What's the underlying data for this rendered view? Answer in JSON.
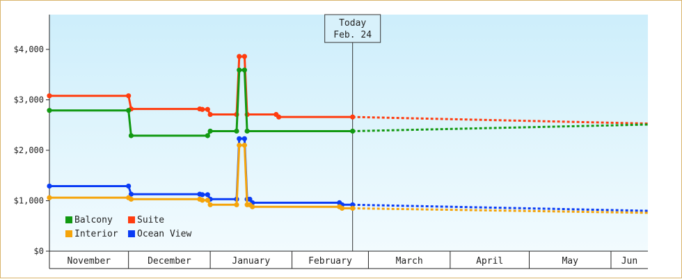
{
  "chart_data": {
    "type": "line",
    "title": "",
    "xlabel": "",
    "ylabel": "",
    "ylim": [
      0,
      4000
    ],
    "x_range": [
      "2019-11-01",
      "2020-06-15"
    ],
    "grid": false,
    "legend_position": "bottom-left",
    "y_ticks": [
      "$0",
      "$1,000",
      "$2,000",
      "$3,000",
      "$4,000"
    ],
    "months": [
      {
        "label": "November",
        "start": "2019-11-01",
        "end": "2019-12-01"
      },
      {
        "label": "December",
        "start": "2019-12-01",
        "end": "2020-01-01"
      },
      {
        "label": "January",
        "start": "2020-01-01",
        "end": "2020-02-01"
      },
      {
        "label": "February",
        "start": "2020-02-01",
        "end": "2020-03-01"
      },
      {
        "label": "March",
        "start": "2020-03-01",
        "end": "2020-04-01"
      },
      {
        "label": "April",
        "start": "2020-04-01",
        "end": "2020-05-01"
      },
      {
        "label": "May",
        "start": "2020-05-01",
        "end": "2020-06-01"
      },
      {
        "label": "Jun",
        "start": "2020-06-01",
        "end": "2020-06-15"
      }
    ],
    "today": {
      "line1": "Today",
      "line2": "Feb. 24",
      "date": "2020-02-24"
    },
    "series": [
      {
        "name": "Suite",
        "color": "#ff3c0f",
        "points": [
          [
            "2019-11-01",
            3080
          ],
          [
            "2019-12-01",
            3080
          ],
          [
            "2019-12-02",
            2820
          ],
          [
            "2019-12-28",
            2820
          ],
          [
            "2019-12-29",
            2810
          ],
          [
            "2019-12-31",
            2810
          ],
          [
            "2020-01-01",
            2710
          ],
          [
            "2020-01-11",
            2710
          ],
          [
            "2020-01-12",
            3860
          ],
          [
            "2020-01-14",
            3860
          ],
          [
            "2020-01-15",
            2710
          ],
          [
            "2020-01-26",
            2710
          ],
          [
            "2020-01-27",
            2660
          ],
          [
            "2020-02-24",
            2660
          ]
        ],
        "forecast": [
          [
            "2020-02-24",
            2660
          ],
          [
            "2020-06-15",
            2530
          ]
        ]
      },
      {
        "name": "Balcony",
        "color": "#119911",
        "points": [
          [
            "2019-11-01",
            2790
          ],
          [
            "2019-12-01",
            2790
          ],
          [
            "2019-12-02",
            2290
          ],
          [
            "2019-12-31",
            2290
          ],
          [
            "2020-01-01",
            2380
          ],
          [
            "2020-01-11",
            2380
          ],
          [
            "2020-01-12",
            3590
          ],
          [
            "2020-01-14",
            3590
          ],
          [
            "2020-01-15",
            2380
          ],
          [
            "2020-02-24",
            2380
          ]
        ],
        "forecast": [
          [
            "2020-02-24",
            2380
          ],
          [
            "2020-06-15",
            2510
          ]
        ]
      },
      {
        "name": "Ocean View",
        "color": "#0a3cf5",
        "points": [
          [
            "2019-11-01",
            1290
          ],
          [
            "2019-12-01",
            1290
          ],
          [
            "2019-12-02",
            1130
          ],
          [
            "2019-12-28",
            1130
          ],
          [
            "2019-12-29",
            1120
          ],
          [
            "2019-12-31",
            1120
          ],
          [
            "2020-01-01",
            1030
          ],
          [
            "2020-01-11",
            1030
          ],
          [
            "2020-01-12",
            2230
          ],
          [
            "2020-01-14",
            2230
          ],
          [
            "2020-01-15",
            1030
          ],
          [
            "2020-01-16",
            1030
          ],
          [
            "2020-01-17",
            960
          ],
          [
            "2020-02-19",
            960
          ],
          [
            "2020-02-20",
            920
          ],
          [
            "2020-02-24",
            920
          ]
        ],
        "forecast": [
          [
            "2020-02-24",
            920
          ],
          [
            "2020-06-15",
            800
          ]
        ]
      },
      {
        "name": "Interior",
        "color": "#f5a40a",
        "points": [
          [
            "2019-11-01",
            1060
          ],
          [
            "2019-12-01",
            1060
          ],
          [
            "2019-12-02",
            1030
          ],
          [
            "2019-12-28",
            1030
          ],
          [
            "2019-12-29",
            1010
          ],
          [
            "2019-12-31",
            1010
          ],
          [
            "2020-01-01",
            920
          ],
          [
            "2020-01-11",
            920
          ],
          [
            "2020-01-12",
            2100
          ],
          [
            "2020-01-14",
            2100
          ],
          [
            "2020-01-15",
            920
          ],
          [
            "2020-01-16",
            920
          ],
          [
            "2020-01-17",
            880
          ],
          [
            "2020-02-19",
            880
          ],
          [
            "2020-02-20",
            850
          ],
          [
            "2020-02-24",
            850
          ]
        ],
        "forecast": [
          [
            "2020-02-24",
            850
          ],
          [
            "2020-06-15",
            760
          ]
        ]
      }
    ],
    "legend": [
      {
        "label": "Balcony",
        "color": "#119911"
      },
      {
        "label": "Suite",
        "color": "#ff3c0f"
      },
      {
        "label": "Interior",
        "color": "#f5a40a"
      },
      {
        "label": "Ocean View",
        "color": "#0a3cf5"
      }
    ]
  }
}
